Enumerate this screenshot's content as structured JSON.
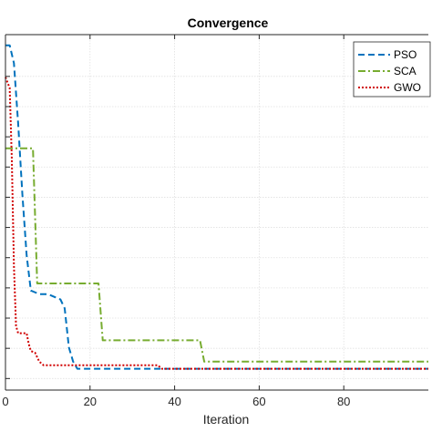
{
  "chart_data": {
    "type": "line",
    "title": "Convergence",
    "xlabel": "Iteration",
    "ylabel": "",
    "xlim": [
      0,
      100
    ],
    "ylim": [
      0,
      1
    ],
    "x_ticks": [
      0,
      20,
      40,
      60,
      80
    ],
    "grid": true,
    "legend_position": "top-right",
    "series": [
      {
        "name": "PSO",
        "color": "#0072BD",
        "dash": "dashed",
        "points": [
          [
            0,
            0.97
          ],
          [
            1,
            0.97
          ],
          [
            2,
            0.92
          ],
          [
            3,
            0.75
          ],
          [
            4,
            0.55
          ],
          [
            5,
            0.38
          ],
          [
            6,
            0.28
          ],
          [
            7,
            0.275
          ],
          [
            8,
            0.27
          ],
          [
            10,
            0.27
          ],
          [
            12,
            0.26
          ],
          [
            13,
            0.255
          ],
          [
            14,
            0.23
          ],
          [
            15,
            0.12
          ],
          [
            16,
            0.08
          ],
          [
            17,
            0.06
          ],
          [
            100,
            0.06
          ]
        ]
      },
      {
        "name": "SCA",
        "color": "#77AC30",
        "dash": "dashdot",
        "points": [
          [
            0,
            0.68
          ],
          [
            6.5,
            0.68
          ],
          [
            7.5,
            0.3
          ],
          [
            22,
            0.3
          ],
          [
            23,
            0.14
          ],
          [
            46,
            0.14
          ],
          [
            47,
            0.08
          ],
          [
            100,
            0.08
          ]
        ]
      },
      {
        "name": "GWO",
        "color": "#D00000",
        "dash": "dotted",
        "points": [
          [
            0,
            0.88
          ],
          [
            1,
            0.85
          ],
          [
            1.5,
            0.65
          ],
          [
            2,
            0.35
          ],
          [
            2.5,
            0.18
          ],
          [
            3,
            0.16
          ],
          [
            5,
            0.16
          ],
          [
            5.5,
            0.13
          ],
          [
            6,
            0.11
          ],
          [
            7,
            0.105
          ],
          [
            8,
            0.08
          ],
          [
            9,
            0.07
          ],
          [
            36,
            0.07
          ],
          [
            37,
            0.06
          ],
          [
            100,
            0.06
          ]
        ]
      }
    ]
  }
}
